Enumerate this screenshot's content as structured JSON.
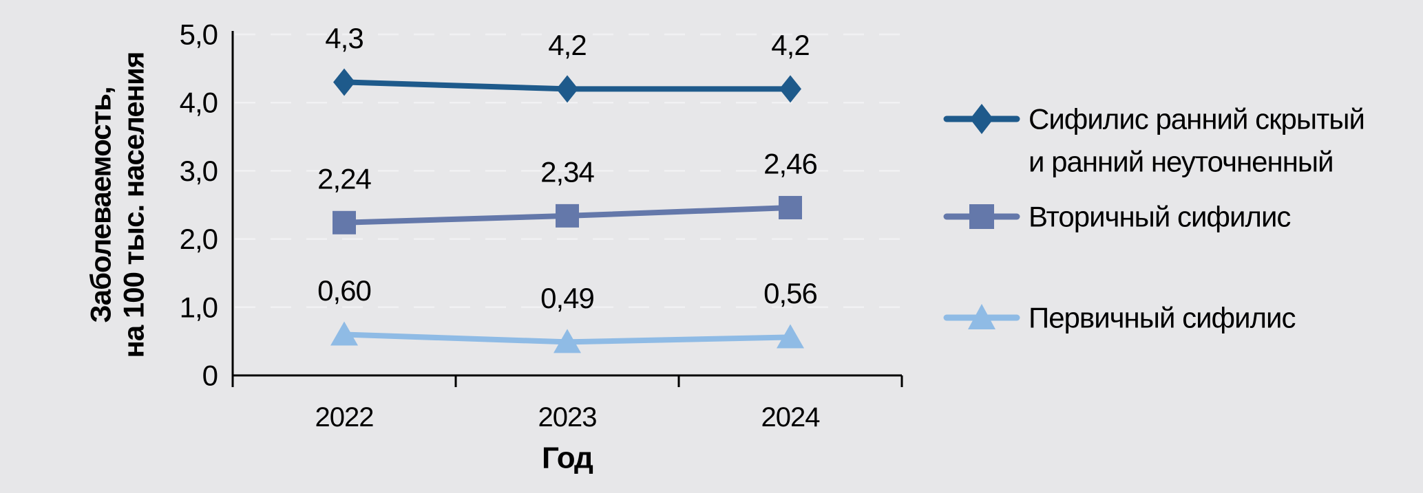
{
  "chart_data": {
    "type": "line",
    "title": "",
    "categories": [
      "2022",
      "2023",
      "2024"
    ],
    "xlabel": "Год",
    "ylabel_lines": [
      "Заболеваемость,",
      "на 100 тыс. населения"
    ],
    "y_axis": {
      "min": 0,
      "max": 5,
      "step": 1,
      "tick_labels": [
        "0",
        "1,0",
        "2,0",
        "3,0",
        "4,0",
        "5,0"
      ]
    },
    "grid": "horizontal-dashed",
    "legend_position": "right",
    "series": [
      {
        "name": "Сифилис ранний скрытый и ранний неуточненный",
        "legend_lines": [
          "Сифилис ранний скрытый",
          "и ранний неуточненный"
        ],
        "marker": "diamond",
        "color": "#1E5A8B",
        "values": [
          4.3,
          4.2,
          4.2
        ],
        "labels": [
          "4,3",
          "4,2",
          "4,2"
        ]
      },
      {
        "name": "Вторичный сифилис",
        "legend_lines": [
          "Вторичный сифилис"
        ],
        "marker": "square",
        "color": "#6478AA",
        "values": [
          2.24,
          2.34,
          2.46
        ],
        "labels": [
          "2,24",
          "2,34",
          "2,46"
        ]
      },
      {
        "name": "Первичный сифилис",
        "legend_lines": [
          "Первичный сифилис"
        ],
        "marker": "triangle",
        "color": "#8FBBE5",
        "values": [
          0.6,
          0.49,
          0.56
        ],
        "labels": [
          "0,60",
          "0,49",
          "0,56"
        ]
      }
    ],
    "colors": {
      "background": "#E7E7E9",
      "gridline": "#F1F1F3",
      "axis": "#000000",
      "text": "#000000"
    }
  }
}
